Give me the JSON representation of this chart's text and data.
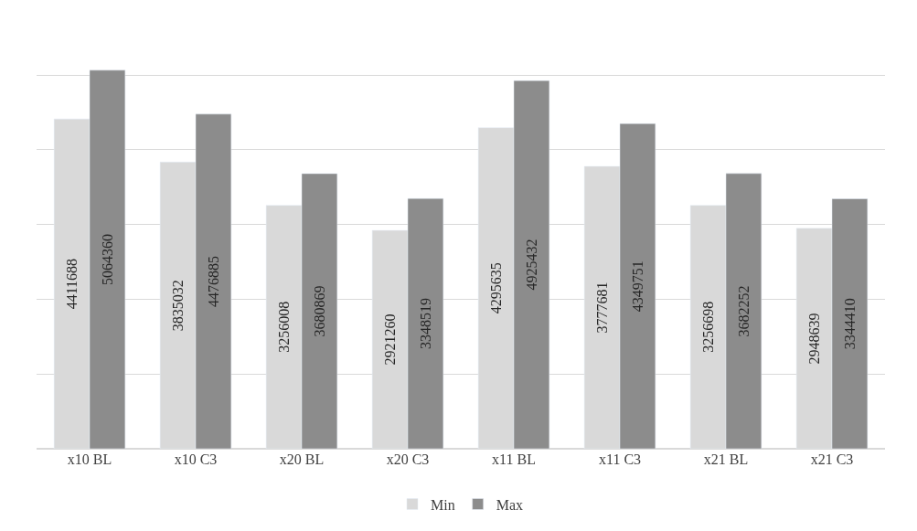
{
  "chart_data": {
    "type": "bar",
    "categories": [
      "x10 BL",
      "x10 C3",
      "x20 BL",
      "x20 C3",
      "x11 BL",
      "x11 C3",
      "x21 BL",
      "x21 C3"
    ],
    "series": [
      {
        "name": "Min",
        "color": "#d9d9d9",
        "values": [
          4411688,
          3835032,
          3256008,
          2921260,
          4295635,
          3777681,
          3256698,
          2948639
        ]
      },
      {
        "name": "Max",
        "color": "#8c8c8c",
        "values": [
          5064360,
          4476885,
          3680869,
          3348519,
          4925432,
          4349751,
          3682252,
          3344410
        ]
      }
    ],
    "yticks": [
      {
        "value": 0,
        "label": null
      },
      {
        "value": 1000000,
        "label": null
      },
      {
        "value": 2000000,
        "label": null
      },
      {
        "value": 3000000,
        "label": null
      },
      {
        "value": 4000000,
        "label": null
      },
      {
        "value": 5000000,
        "label": null
      }
    ],
    "grid": "y",
    "legend": "bottom",
    "data_labels": true,
    "tick_labels": "x"
  }
}
